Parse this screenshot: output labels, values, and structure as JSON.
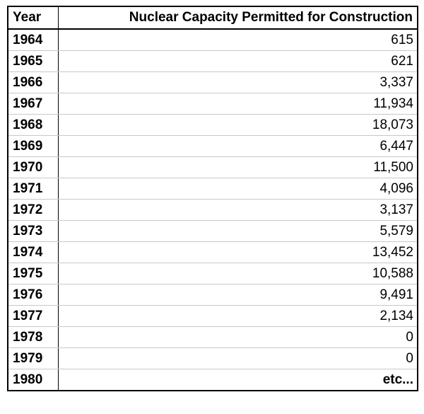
{
  "chart_data": {
    "type": "table",
    "columns": [
      "Year",
      "Nuclear Capacity Permitted for Construction"
    ],
    "rows": [
      {
        "year": "1964",
        "value": "615"
      },
      {
        "year": "1965",
        "value": "621"
      },
      {
        "year": "1966",
        "value": "3,337"
      },
      {
        "year": "1967",
        "value": "11,934"
      },
      {
        "year": "1968",
        "value": "18,073"
      },
      {
        "year": "1969",
        "value": "6,447"
      },
      {
        "year": "1970",
        "value": "11,500"
      },
      {
        "year": "1971",
        "value": "4,096"
      },
      {
        "year": "1972",
        "value": "3,137"
      },
      {
        "year": "1973",
        "value": "5,579"
      },
      {
        "year": "1974",
        "value": "13,452"
      },
      {
        "year": "1975",
        "value": "10,588"
      },
      {
        "year": "1976",
        "value": "9,491"
      },
      {
        "year": "1977",
        "value": "2,134"
      },
      {
        "year": "1978",
        "value": "0"
      },
      {
        "year": "1979",
        "value": "0"
      },
      {
        "year": "1980",
        "value": "etc..."
      }
    ]
  }
}
